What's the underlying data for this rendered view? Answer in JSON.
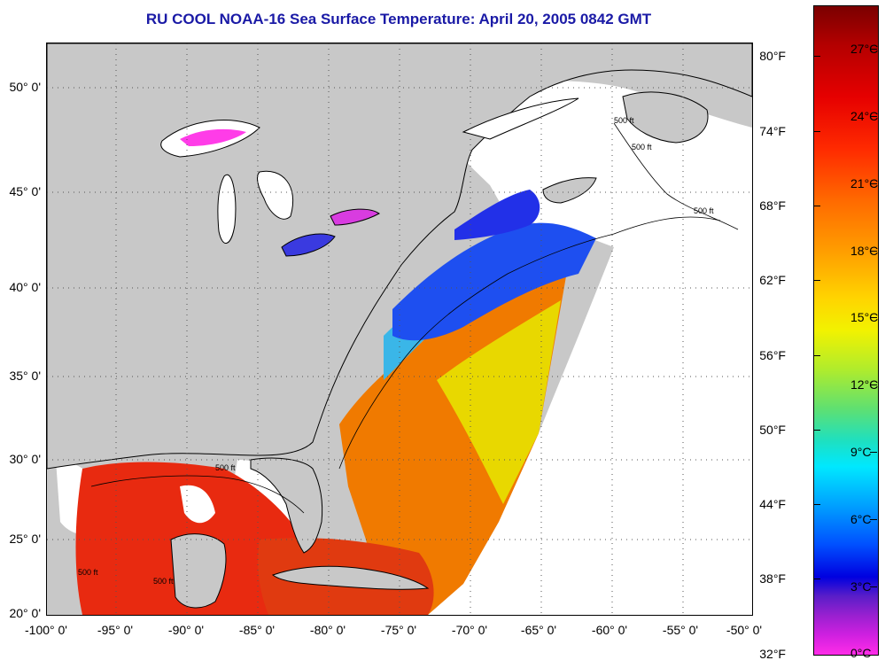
{
  "title": "RU COOL  NOAA-16  Sea Surface Temperature:  April 20, 2005 0842 GMT",
  "map": {
    "lat_labels": [
      "50° 0'",
      "45° 0'",
      "40° 0'",
      "35° 0'",
      "30° 0'",
      "25° 0'",
      "20° 0'"
    ],
    "lon_labels": [
      "-100° 0'",
      "-95° 0'",
      "-90° 0'",
      "-85° 0'",
      "-80° 0'",
      "-75° 0'",
      "-70° 0'",
      "-65° 0'",
      "-60° 0'",
      "-55° 0'",
      "-50° 0'"
    ],
    "isobath_labels": [
      "500 ft",
      "500 ft",
      "500 ft",
      "500 ft",
      "500 ft",
      "500 ft"
    ],
    "colors": {
      "land": "#c8c8c8",
      "cloud": "#ffffff",
      "grid": "#555555"
    }
  },
  "colorbar": {
    "fahrenheit_labels": [
      "80°F",
      "74°F",
      "68°F",
      "62°F",
      "56°F",
      "50°F",
      "44°F",
      "38°F",
      "32°F"
    ],
    "celsius_labels": [
      "27°C",
      "24°C",
      "21°C",
      "18°C",
      "15°C",
      "12°C",
      "9°C",
      "6°C",
      "3°C",
      "0°C"
    ]
  }
}
